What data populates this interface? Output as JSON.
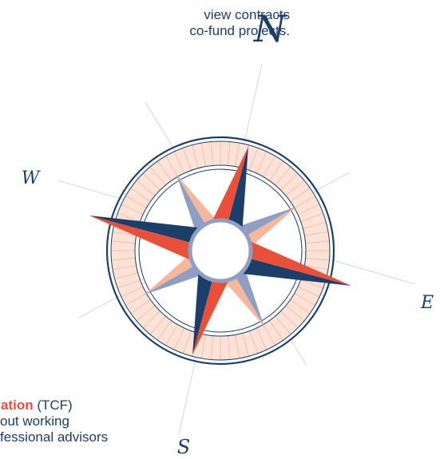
{
  "top_text": {
    "line1": "view contracts",
    "line2": "co-fund projects."
  },
  "bottom_text": {
    "line1_bold": "ation",
    "line1_rest": " (TCF)",
    "line2": "out working",
    "line3": "fessional advisors"
  },
  "compass": {
    "north": "N",
    "west": "W",
    "east": "E",
    "south": "S"
  },
  "colors": {
    "navy": "#1c3f6a",
    "red": "#e8503a",
    "peach": "#f7b79a",
    "lavender": "#8f9ec3",
    "ring_fill": "#fde3d7"
  }
}
